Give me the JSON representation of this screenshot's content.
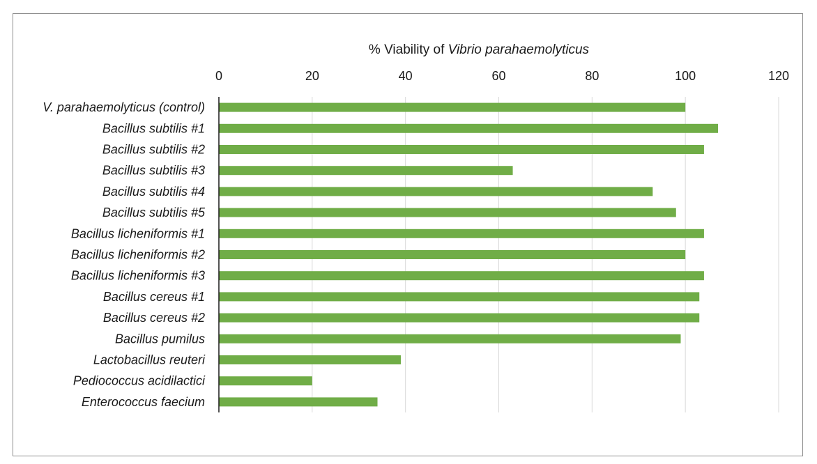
{
  "chart_data": {
    "type": "bar",
    "orientation": "horizontal",
    "title_parts": [
      {
        "text": "% Viability of ",
        "italic": false
      },
      {
        "text": "Vibrio parahaemolyticus",
        "italic": true
      }
    ],
    "xlim": [
      0,
      120
    ],
    "x_ticks": [
      "0",
      "20",
      "40",
      "60",
      "80",
      "100",
      "120"
    ],
    "x_axis_position": "top",
    "grid": "vertical",
    "bar_color": "#70ad47",
    "categories": [
      "V. parahaemolyticus (control)",
      "Bacillus subtilis #1",
      "Bacillus subtilis #2",
      "Bacillus subtilis #3",
      "Bacillus subtilis #4",
      "Bacillus subtilis #5",
      "Bacillus licheniformis #1",
      "Bacillus licheniformis #2",
      "Bacillus licheniformis #3",
      "Bacillus cereus #1",
      "Bacillus cereus #2",
      "Bacillus pumilus",
      "Lactobacillus reuteri",
      "Pediococcus acidilactici",
      "Enterococcus faecium"
    ],
    "values": [
      100,
      107,
      104,
      63,
      93,
      98,
      104,
      100,
      104,
      103,
      103,
      99,
      39,
      20,
      34
    ]
  }
}
